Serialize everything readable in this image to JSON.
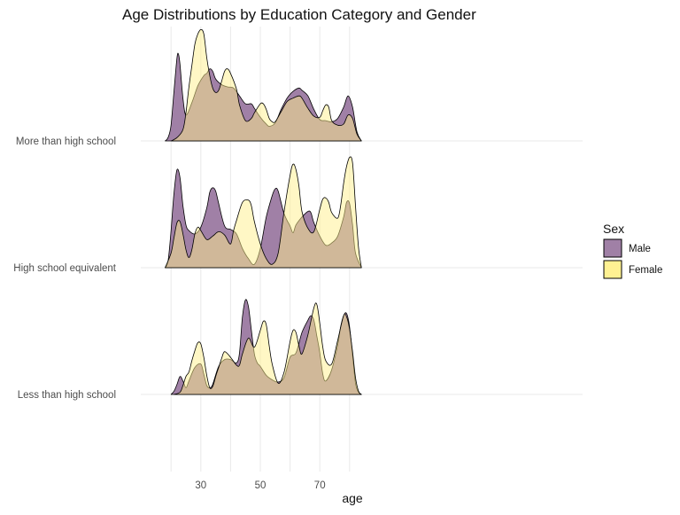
{
  "chart_data": {
    "type": "area",
    "subtype": "ridgeline-density",
    "title": "Age Distributions by Education Category and Gender",
    "xlabel": "age",
    "ylabel": "",
    "xlim": [
      15,
      85
    ],
    "x_ticks": [
      30,
      50,
      70
    ],
    "grid": true,
    "legend": {
      "title": "Sex",
      "position": "right"
    },
    "categories": [
      "More than high school",
      "High school equivalent",
      "Less than high school"
    ],
    "series_colors": {
      "Male": "#a080a6",
      "Female": "#fff08c",
      "Overlap": "#ceae63"
    },
    "series": [
      {
        "category": "More than high school",
        "name": "Male",
        "x": [
          18,
          19,
          20,
          21,
          22,
          22.5,
          23,
          24,
          25,
          27,
          29,
          31,
          32,
          33,
          34,
          35,
          37,
          39,
          41,
          43,
          45,
          47,
          48,
          50,
          52,
          53,
          55,
          57,
          59,
          61,
          63,
          64,
          66,
          68,
          70,
          72,
          74,
          76,
          78,
          79.5,
          81,
          82.5,
          84
        ],
        "values": [
          0,
          0.03,
          0.14,
          0.45,
          0.74,
          0.77,
          0.68,
          0.38,
          0.23,
          0.34,
          0.49,
          0.58,
          0.6,
          0.64,
          0.62,
          0.55,
          0.5,
          0.48,
          0.47,
          0.4,
          0.33,
          0.33,
          0.29,
          0.21,
          0.15,
          0.13,
          0.16,
          0.28,
          0.38,
          0.44,
          0.47,
          0.45,
          0.4,
          0.28,
          0.19,
          0.18,
          0.17,
          0.2,
          0.3,
          0.4,
          0.3,
          0.08,
          0
        ]
      },
      {
        "category": "More than high school",
        "name": "Female",
        "x": [
          20,
          22,
          24,
          25,
          26,
          27,
          28,
          29,
          30,
          31,
          32,
          33,
          34,
          35,
          36,
          37,
          38,
          39,
          40,
          42,
          43,
          45,
          47,
          48,
          50,
          51,
          52,
          53,
          54,
          55,
          57,
          59,
          61,
          63,
          64,
          66,
          68,
          70,
          71,
          72,
          73,
          74,
          76,
          78,
          79.5,
          81,
          82.5,
          84
        ],
        "values": [
          0,
          0.03,
          0.1,
          0.25,
          0.48,
          0.67,
          0.86,
          0.95,
          0.99,
          0.95,
          0.74,
          0.58,
          0.47,
          0.43,
          0.45,
          0.53,
          0.62,
          0.64,
          0.6,
          0.46,
          0.32,
          0.18,
          0.2,
          0.25,
          0.33,
          0.33,
          0.28,
          0.2,
          0.17,
          0.17,
          0.26,
          0.35,
          0.38,
          0.4,
          0.38,
          0.29,
          0.22,
          0.21,
          0.27,
          0.32,
          0.3,
          0.18,
          0.14,
          0.15,
          0.23,
          0.2,
          0.06,
          0
        ]
      },
      {
        "category": "High school equivalent",
        "name": "Male",
        "x": [
          18,
          19,
          20,
          21,
          22,
          23,
          24,
          25,
          26,
          28,
          30,
          32,
          33,
          34,
          35,
          36,
          38,
          40,
          42,
          44,
          46,
          48,
          50,
          52,
          54,
          55,
          56,
          58,
          60,
          61,
          62,
          64,
          66,
          67,
          68,
          70,
          72,
          74,
          76,
          78,
          79,
          80,
          81,
          82,
          84
        ],
        "values": [
          0,
          0.06,
          0.33,
          0.67,
          0.87,
          0.8,
          0.55,
          0.38,
          0.33,
          0.3,
          0.36,
          0.53,
          0.67,
          0.71,
          0.68,
          0.57,
          0.37,
          0.34,
          0.3,
          0.17,
          0.08,
          0.03,
          0.17,
          0.45,
          0.64,
          0.7,
          0.68,
          0.48,
          0.37,
          0.31,
          0.38,
          0.45,
          0.5,
          0.49,
          0.4,
          0.28,
          0.2,
          0.22,
          0.28,
          0.45,
          0.58,
          0.57,
          0.38,
          0.13,
          0
        ]
      },
      {
        "category": "High school equivalent",
        "name": "Female",
        "x": [
          18,
          20,
          21,
          22,
          23,
          24,
          25,
          26,
          27,
          28,
          29,
          30,
          32,
          34,
          36,
          38,
          40,
          41,
          42,
          44,
          46,
          47,
          48,
          50,
          52,
          54,
          56,
          58,
          60,
          61,
          62,
          63,
          64,
          66,
          68,
          70,
          71,
          72,
          73,
          74,
          76,
          77,
          78,
          79,
          80,
          81,
          82,
          83,
          84
        ],
        "values": [
          0,
          0.13,
          0.27,
          0.4,
          0.41,
          0.3,
          0.16,
          0.09,
          0.16,
          0.3,
          0.36,
          0.33,
          0.25,
          0.28,
          0.32,
          0.29,
          0.21,
          0.33,
          0.42,
          0.58,
          0.6,
          0.55,
          0.41,
          0.21,
          0.08,
          0.03,
          0.13,
          0.5,
          0.82,
          0.92,
          0.87,
          0.72,
          0.5,
          0.35,
          0.32,
          0.52,
          0.61,
          0.62,
          0.58,
          0.49,
          0.44,
          0.55,
          0.75,
          0.9,
          0.98,
          0.93,
          0.55,
          0.18,
          0
        ]
      },
      {
        "category": "Less than high school",
        "name": "Male",
        "x": [
          20,
          21,
          22,
          23,
          24,
          25,
          26,
          28,
          30,
          31,
          32,
          33,
          34,
          36,
          38,
          40,
          42,
          43,
          44,
          45,
          46,
          47,
          48,
          49,
          50,
          52,
          54,
          56,
          58,
          60,
          62,
          64,
          66,
          67,
          68,
          69,
          70,
          71,
          72,
          74,
          76,
          77,
          78,
          79,
          80,
          81,
          82,
          83,
          84
        ],
        "values": [
          0,
          0.03,
          0.09,
          0.16,
          0.12,
          0.06,
          0.12,
          0.24,
          0.27,
          0.18,
          0.08,
          0.06,
          0.09,
          0.25,
          0.31,
          0.31,
          0.28,
          0.37,
          0.69,
          0.84,
          0.78,
          0.57,
          0.36,
          0.28,
          0.25,
          0.17,
          0.13,
          0.11,
          0.15,
          0.33,
          0.37,
          0.55,
          0.66,
          0.7,
          0.66,
          0.52,
          0.37,
          0.18,
          0.12,
          0.22,
          0.44,
          0.6,
          0.7,
          0.72,
          0.6,
          0.35,
          0.1,
          0.02,
          0
        ]
      },
      {
        "category": "Less than high school",
        "name": "Female",
        "x": [
          21,
          23,
          24,
          25,
          26,
          27,
          28,
          29,
          30,
          31,
          32,
          33,
          34,
          35,
          36,
          37,
          38,
          40,
          42,
          43,
          44,
          46,
          48,
          50,
          51,
          52,
          53,
          54,
          56,
          58,
          60,
          61,
          62,
          63,
          64,
          66,
          68,
          69,
          70,
          71,
          72,
          74,
          76,
          78,
          79,
          80,
          81,
          82,
          83,
          84
        ],
        "values": [
          0,
          0.02,
          0.08,
          0.16,
          0.2,
          0.3,
          0.39,
          0.46,
          0.45,
          0.33,
          0.17,
          0.06,
          0.07,
          0.16,
          0.24,
          0.32,
          0.38,
          0.33,
          0.26,
          0.26,
          0.36,
          0.5,
          0.42,
          0.57,
          0.65,
          0.62,
          0.43,
          0.27,
          0.1,
          0.2,
          0.47,
          0.57,
          0.55,
          0.43,
          0.36,
          0.53,
          0.77,
          0.8,
          0.63,
          0.42,
          0.3,
          0.27,
          0.48,
          0.7,
          0.69,
          0.58,
          0.38,
          0.15,
          0.03,
          0
        ]
      }
    ]
  },
  "legend_items": [
    {
      "label": "Male",
      "color": "#a080a6"
    },
    {
      "label": "Female",
      "color": "#fff08c"
    }
  ]
}
